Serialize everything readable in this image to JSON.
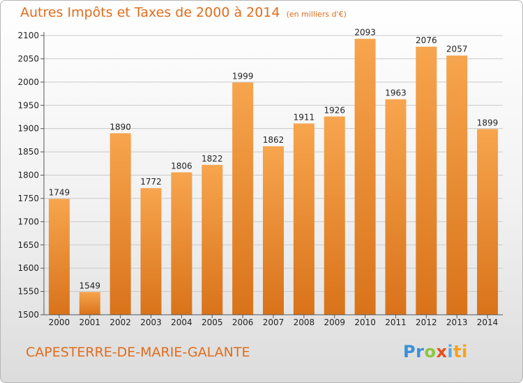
{
  "chart_data": {
    "type": "bar",
    "title": "Autres Impôts et Taxes de 2000 à 2014",
    "unit": "(en milliers d'€)",
    "subject": "CAPESTERRE-DE-MARIE-GALANTE",
    "categories": [
      "2000",
      "2001",
      "2002",
      "2003",
      "2004",
      "2005",
      "2006",
      "2007",
      "2008",
      "2009",
      "2010",
      "2011",
      "2012",
      "2013",
      "2014"
    ],
    "values": [
      1749,
      1549,
      1890,
      1772,
      1806,
      1822,
      1999,
      1862,
      1911,
      1926,
      2093,
      1963,
      2076,
      2057,
      1899
    ],
    "yticks": [
      1500,
      1550,
      1600,
      1650,
      1700,
      1750,
      1800,
      1850,
      1900,
      1950,
      2000,
      2050,
      2100
    ],
    "ylim": [
      1500,
      2100
    ],
    "grid": true,
    "colors": {
      "bar_top": "#f7a54e",
      "bar_bottom": "#d9731a",
      "title": "#e06c1c"
    }
  },
  "brand": {
    "p1": "Pr",
    "p2": "o",
    "p3": "x",
    "p4": "i",
    "p5": "t",
    "p6": "i"
  }
}
